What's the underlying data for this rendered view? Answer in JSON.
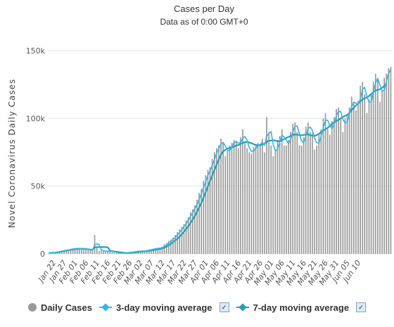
{
  "chart_data": {
    "type": "bar",
    "title": "Cases per Day",
    "subtitle": "Data as of 0:00 GMT+0",
    "ylabel": "Novel Coronavirus Daily Cases",
    "ylim": [
      0,
      150000
    ],
    "yticks": [
      "0",
      "50k",
      "100k",
      "150k"
    ],
    "x_tick_labels": [
      "Jan 22",
      "Jan 27",
      "Feb 01",
      "Feb 06",
      "Feb 11",
      "Feb 16",
      "Feb 21",
      "Feb 26",
      "Mar 02",
      "Mar 07",
      "Mar 12",
      "Mar 17",
      "Mar 22",
      "Mar 27",
      "Apr 01",
      "Apr 06",
      "Apr 11",
      "Apr 16",
      "Apr 21",
      "Apr 26",
      "May 01",
      "May 06",
      "May 11",
      "May 16",
      "May 21",
      "May 26",
      "May 31",
      "Jun 05",
      "Jun 10"
    ],
    "grid": true,
    "legend_position": "bottom",
    "colors": {
      "bars": "#9a9a9a",
      "ma3": "#33b5e5",
      "ma7": "#2a9bb5"
    },
    "series": [
      {
        "name": "Daily Cases",
        "values": [
          600,
          300,
          700,
          1100,
          1500,
          1900,
          2200,
          2600,
          2800,
          3200,
          3700,
          3900,
          3800,
          4300,
          3900,
          3700,
          3600,
          3200,
          3000,
          2600,
          2700,
          14000,
          5200,
          2100,
          2600,
          2000,
          1900,
          2000,
          1900,
          1800,
          1000,
          600,
          400,
          900,
          500,
          600,
          1000,
          900,
          1100,
          1500,
          1700,
          2000,
          2000,
          2000,
          2200,
          2500,
          2800,
          3100,
          3800,
          4000,
          4200,
          4300,
          5000,
          7000,
          8000,
          9500,
          10500,
          12000,
          14000,
          16000,
          18000,
          20000,
          22000,
          25000,
          27000,
          31000,
          33000,
          36000,
          40000,
          45000,
          48000,
          54000,
          58000,
          62000,
          64000,
          70000,
          75000,
          78000,
          80000,
          85000,
          82000,
          72000,
          76000,
          80000,
          82000,
          84000,
          83000,
          78000,
          86000,
          92000,
          82000,
          78000,
          75000,
          74000,
          79000,
          80000,
          82000,
          80000,
          85000,
          75000,
          101000,
          90000,
          80000,
          72000,
          76000,
          84000,
          87000,
          92000,
          80000,
          80000,
          84000,
          90000,
          96000,
          97000,
          90000,
          80000,
          80000,
          86000,
          94000,
          97000,
          90000,
          89000,
          77000,
          80000,
          88000,
          92000,
          100000,
          104000,
          92000,
          88000,
          98000,
          101000,
          107000,
          108000,
          100000,
          90000,
          100000,
          102000,
          108000,
          116000,
          112000,
          106000,
          113000,
          124000,
          127000,
          118000,
          104000,
          114000,
          118000,
          127000,
          133000,
          129000,
          112000,
          120000,
          130000,
          133000,
          137000,
          138000
        ]
      },
      {
        "name": "3-day moving average",
        "values": [
          700,
          700,
          700,
          1000,
          1400,
          1700,
          2000,
          2400,
          2700,
          2900,
          3200,
          3600,
          3800,
          4000,
          4000,
          3800,
          3700,
          3500,
          3300,
          2900,
          2800,
          6500,
          7300,
          7000,
          3300,
          2200,
          2200,
          2000,
          1900,
          1900,
          1600,
          1100,
          700,
          600,
          600,
          700,
          800,
          1000,
          1200,
          1400,
          1700,
          1900,
          2000,
          2100,
          2200,
          2400,
          2700,
          3000,
          3400,
          3800,
          4000,
          4300,
          4600,
          5500,
          6700,
          8100,
          9400,
          10700,
          12100,
          14000,
          16000,
          18000,
          20000,
          22300,
          24700,
          27700,
          30300,
          33300,
          36300,
          40300,
          44300,
          49000,
          53300,
          58000,
          61300,
          65300,
          69700,
          74300,
          77700,
          81000,
          82300,
          79600,
          76600,
          76000,
          79300,
          82000,
          83000,
          81600,
          82300,
          85300,
          86600,
          84000,
          78300,
          75600,
          76000,
          77600,
          80300,
          80600,
          82300,
          80000,
          87000,
          88600,
          90300,
          80600,
          76000,
          77300,
          82300,
          87600,
          86300,
          84000,
          81300,
          84600,
          90000,
          94300,
          94300,
          89000,
          83300,
          82000,
          86600,
          92300,
          93600,
          91000,
          85300,
          82000,
          81600,
          86600,
          93300,
          98600,
          98600,
          94600,
          92600,
          95600,
          102000,
          105300,
          105000,
          99300,
          96600,
          97300,
          103300,
          108600,
          112000,
          111300,
          110300,
          114300,
          121300,
          123000,
          116300,
          112000,
          112000,
          119600,
          126000,
          129600,
          124600,
          120300,
          120600,
          127600,
          133300,
          136000
        ]
      },
      {
        "name": "7-day moving average",
        "values": [
          700,
          700,
          800,
          900,
          1200,
          1500,
          1800,
          2100,
          2400,
          2700,
          3000,
          3300,
          3500,
          3700,
          3800,
          3800,
          3700,
          3600,
          3400,
          3200,
          3100,
          4800,
          5000,
          5000,
          5000,
          5000,
          5000,
          4900,
          2400,
          2000,
          1800,
          1600,
          1300,
          1100,
          900,
          700,
          700,
          800,
          900,
          1000,
          1200,
          1400,
          1600,
          1800,
          2000,
          2100,
          2300,
          2500,
          2800,
          3100,
          3400,
          3700,
          4000,
          4600,
          5300,
          6300,
          7400,
          8600,
          9900,
          11200,
          12700,
          14500,
          16300,
          18300,
          20400,
          22800,
          25300,
          28000,
          31000,
          34300,
          37800,
          41600,
          45700,
          49800,
          53800,
          57900,
          61900,
          65800,
          69700,
          73100,
          75600,
          76800,
          77700,
          78200,
          78600,
          79200,
          80000,
          80300,
          81000,
          82000,
          82500,
          82600,
          82200,
          81700,
          80900,
          80400,
          80200,
          80100,
          80900,
          81300,
          82700,
          83500,
          83600,
          83900,
          83500,
          83100,
          83200,
          83900,
          84700,
          85500,
          86300,
          87000,
          87800,
          88100,
          88000,
          87700,
          87500,
          87800,
          88100,
          88200,
          87600,
          87100,
          87100,
          87700,
          88600,
          89900,
          91000,
          92000,
          93000,
          94500,
          96000,
          97000,
          98000,
          99000,
          100000,
          101000,
          101800,
          102500,
          104000,
          106000,
          108000,
          109500,
          111000,
          112500,
          114000,
          115000,
          115500,
          116500,
          118000,
          119500,
          120500,
          121000,
          121500,
          122500,
          124000,
          125500
        ]
      }
    ]
  },
  "legend": {
    "items": [
      {
        "label": "Daily Cases"
      },
      {
        "label": "3-day moving average"
      },
      {
        "label": "7-day moving average"
      }
    ]
  }
}
